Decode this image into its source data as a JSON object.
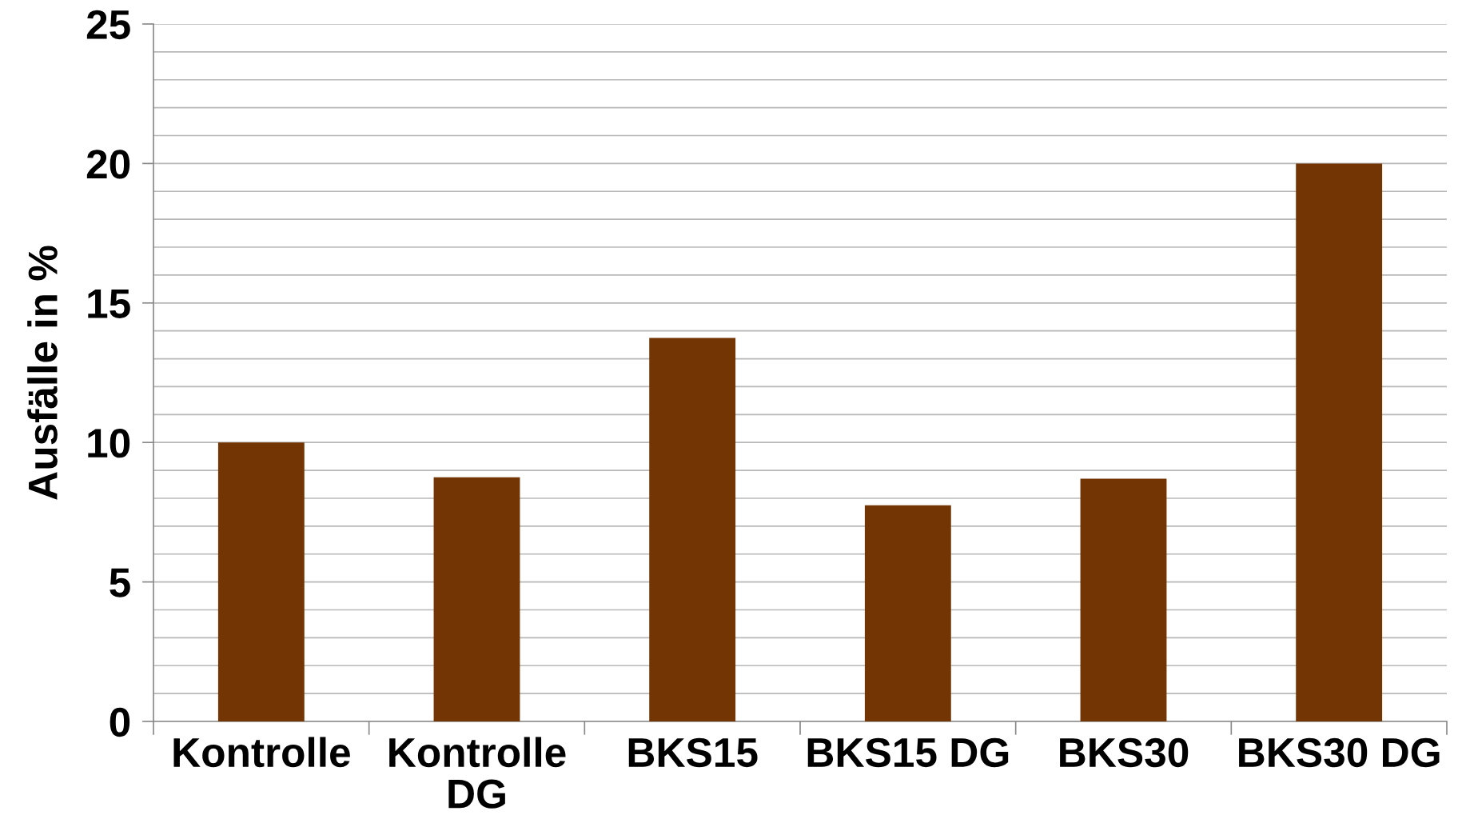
{
  "chart_data": {
    "type": "bar",
    "ylabel": "Ausfälle in %",
    "categories": [
      "Kontrolle",
      "Kontrolle DG",
      "BKS15",
      "BKS15 DG",
      "BKS30",
      "BKS30 DG"
    ],
    "values": [
      10,
      8.75,
      13.75,
      7.75,
      8.7,
      20
    ],
    "color": "#743505",
    "ylim": [
      0,
      25
    ],
    "yticks": [
      0,
      5,
      10,
      15,
      20,
      25
    ],
    "grid": "y"
  }
}
